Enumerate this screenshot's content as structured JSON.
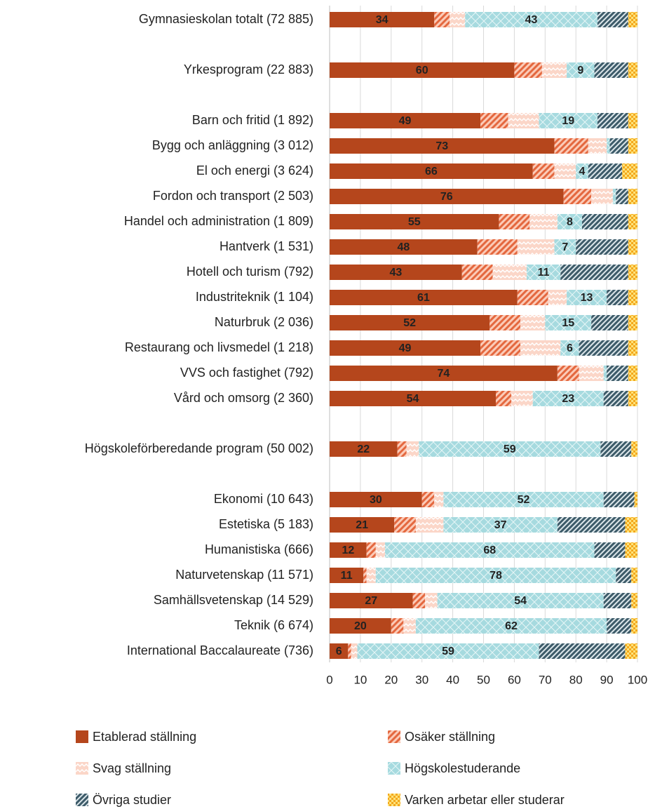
{
  "chart_data": {
    "type": "stacked_barh",
    "categories": [
      "Gymnasieskolan totalt (72 885)",
      null,
      "Yrkesprogram (22 883)",
      null,
      "Barn och fritid (1 892)",
      "Bygg och anläggning (3 012)",
      "El och energi (3 624)",
      "Fordon och transport (2 503)",
      "Handel och administration (1 809)",
      "Hantverk (1 531)",
      "Hotell och turism (792)",
      "Industriteknik (1 104)",
      "Naturbruk (2 036)",
      "Restaurang och livsmedel (1 218)",
      "VVS och fastighet (792)",
      "Vård och omsorg (2 360)",
      null,
      "Högskoleförberedande program (50 002)",
      null,
      "Ekonomi (10 643)",
      "Estetiska (5 183)",
      "Humanistiska (666)",
      "Naturvetenskap (11 571)",
      "Samhällsvetenskap (14 529)",
      "Teknik (6 674)",
      "International Baccalaureate (736)"
    ],
    "series": [
      {
        "name": "Etablerad ställning",
        "color": "#b5461c",
        "data_labels": true,
        "values": [
          34,
          null,
          60,
          null,
          49,
          73,
          66,
          76,
          55,
          48,
          43,
          61,
          52,
          49,
          74,
          54,
          null,
          22,
          null,
          30,
          21,
          12,
          11,
          27,
          20,
          6
        ]
      },
      {
        "name": "Osäker ställning",
        "color": "#e4683f",
        "values": [
          5,
          null,
          9,
          null,
          9,
          11,
          7,
          9,
          10,
          13,
          10,
          10,
          10,
          13,
          7,
          5,
          null,
          3,
          null,
          4,
          7,
          3,
          1,
          4,
          4,
          1
        ]
      },
      {
        "name": "Svag ställning",
        "color": "#fbd6c8",
        "values": [
          5,
          null,
          8,
          null,
          10,
          6,
          7,
          7,
          9,
          12,
          11,
          6,
          8,
          13,
          8,
          7,
          null,
          4,
          null,
          3,
          9,
          3,
          3,
          4,
          4,
          2
        ]
      },
      {
        "name": "Högskolestuderande",
        "color": "#a6dadf",
        "data_labels": true,
        "values": [
          43,
          null,
          9,
          null,
          19,
          1,
          4,
          1,
          8,
          7,
          11,
          13,
          15,
          6,
          1,
          23,
          null,
          59,
          null,
          52,
          37,
          68,
          78,
          54,
          62,
          59
        ]
      },
      {
        "name": "Övriga studier",
        "color": "#3d5b69",
        "values": [
          10,
          null,
          11,
          null,
          10,
          6,
          11,
          4,
          15,
          17,
          22,
          7,
          12,
          16,
          7,
          8,
          null,
          10,
          null,
          10,
          22,
          10,
          5,
          9,
          8,
          28
        ]
      },
      {
        "name": "Varken arbetar eller studerar",
        "color": "#f4a81d",
        "values": [
          3,
          null,
          3,
          null,
          3,
          3,
          5,
          3,
          3,
          3,
          3,
          3,
          3,
          3,
          3,
          3,
          null,
          2,
          null,
          1,
          4,
          4,
          2,
          2,
          2,
          4
        ]
      }
    ],
    "xlim": [
      0,
      100
    ],
    "xticks": [
      0,
      10,
      20,
      30,
      40,
      50,
      60,
      70,
      80,
      90,
      100
    ],
    "grid": true
  }
}
